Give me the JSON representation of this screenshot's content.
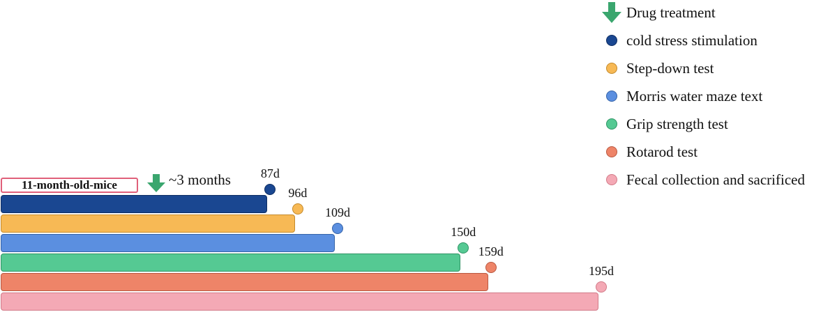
{
  "legend": [
    {
      "type": "arrow",
      "label": "Drug treatment",
      "fill": "#3aa66e"
    },
    {
      "type": "dot",
      "label": "cold stress stimulation",
      "fill": "#1a4791",
      "stroke": "#0f2e63"
    },
    {
      "type": "dot",
      "label": "Step-down test",
      "fill": "#f7b955",
      "stroke": "#c48a2b"
    },
    {
      "type": "dot",
      "label": "Morris water maze text",
      "fill": "#5b8fe0",
      "stroke": "#3563a8"
    },
    {
      "type": "dot",
      "label": "Grip strength test",
      "fill": "#55c993",
      "stroke": "#2f9465"
    },
    {
      "type": "dot",
      "label": "Rotarod test",
      "fill": "#ee8468",
      "stroke": "#b95840"
    },
    {
      "type": "dot",
      "label": "Fecal collection and sacrificed",
      "fill": "#f4a9b5",
      "stroke": "#d27a88"
    }
  ],
  "timeline": {
    "start_label": "11-month-old-mice",
    "duration_text": "~3 months",
    "bars": [
      {
        "name": "cold stress stimulation",
        "day": 87,
        "label": "87d",
        "fill": "#1a4791",
        "stroke": "#0f2e63"
      },
      {
        "name": "Step-down test",
        "day": 96,
        "label": "96d",
        "fill": "#f7b955",
        "stroke": "#c48a2b"
      },
      {
        "name": "Morris water maze text",
        "day": 109,
        "label": "109d",
        "fill": "#5b8fe0",
        "stroke": "#3563a8"
      },
      {
        "name": "Grip strength test",
        "day": 150,
        "label": "150d",
        "fill": "#55c993",
        "stroke": "#2f9465"
      },
      {
        "name": "Rotarod test",
        "day": 159,
        "label": "159d",
        "fill": "#ee8468",
        "stroke": "#b95840"
      },
      {
        "name": "Fecal collection and sacrificed",
        "day": 195,
        "label": "195d",
        "fill": "#f4a9b5",
        "stroke": "#d27a88"
      }
    ]
  }
}
